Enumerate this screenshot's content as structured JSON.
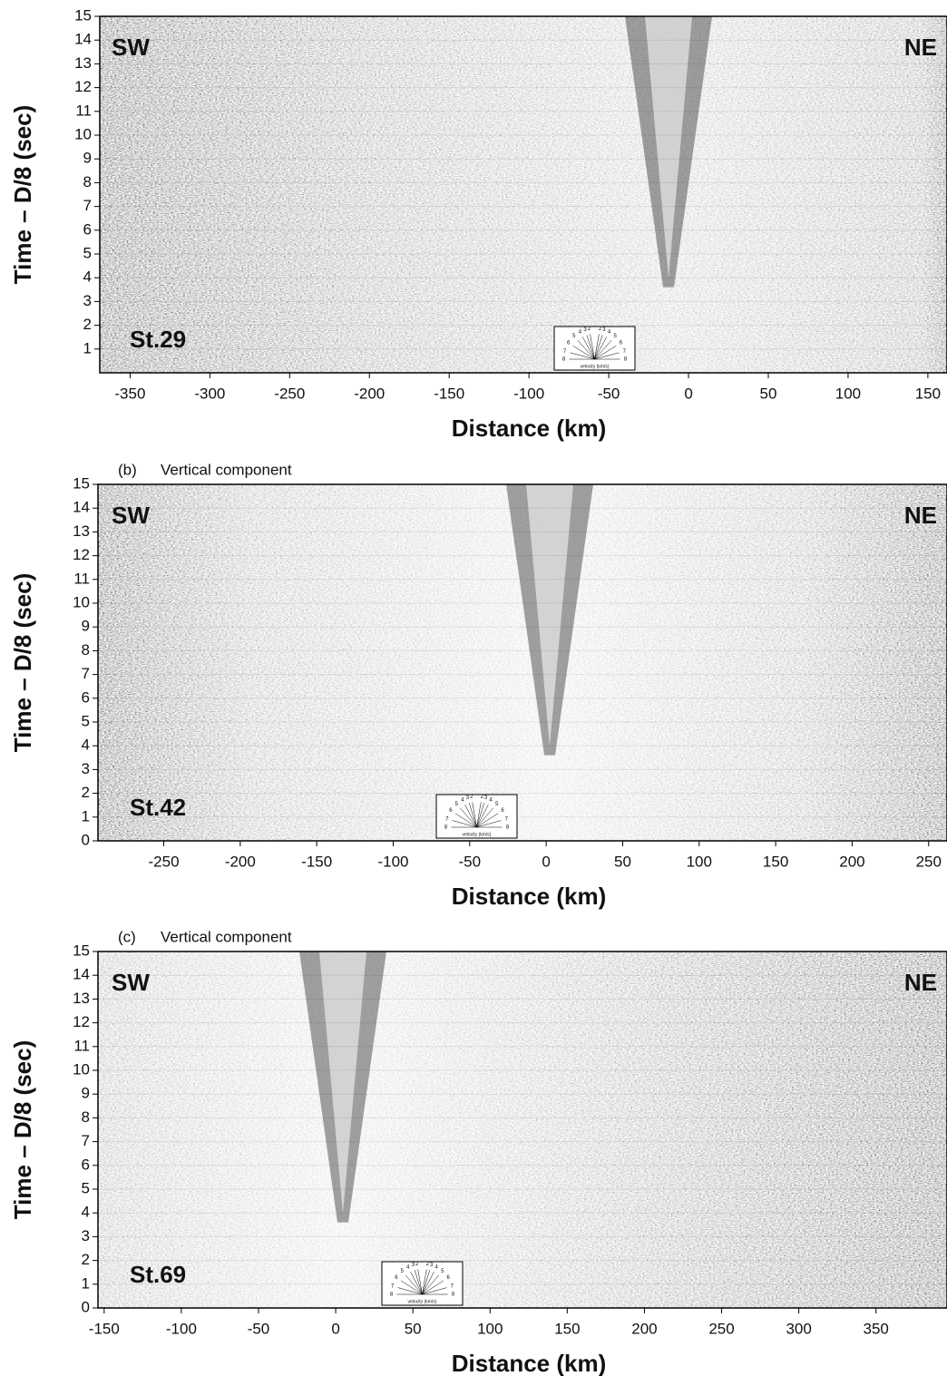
{
  "chart_data": [
    {
      "type": "seismic",
      "xlabel": "Distance (km)",
      "ylabel": "Time – D/8 (sec)",
      "left_label": "SW",
      "right_label": "NE",
      "station": "St.29",
      "xlim": [
        -369,
        162
      ],
      "ylim": [
        0,
        15
      ],
      "xticks": [
        -350,
        -300,
        -250,
        -200,
        -150,
        -100,
        -50,
        0,
        50,
        100,
        150
      ],
      "yticks": [
        1,
        2,
        3,
        4,
        5,
        6,
        7,
        8,
        9,
        10,
        11,
        12,
        13,
        14,
        15
      ],
      "inset": {
        "label": "velocity (km/s)",
        "velocities_left": [
          8,
          7,
          6,
          5,
          4,
          3,
          2
        ],
        "velocities_right": [
          2,
          3,
          4,
          5,
          6,
          7,
          8
        ]
      }
    },
    {
      "type": "seismic",
      "panel_label": "(b)",
      "subtitle": "Vertical component",
      "xlabel": "Distance (km)",
      "ylabel": "Time – D/8 (sec)",
      "left_label": "SW",
      "right_label": "NE",
      "station": "St.42",
      "xlim": [
        -293,
        262
      ],
      "ylim": [
        0,
        15
      ],
      "xticks": [
        -250,
        -200,
        -150,
        -100,
        -50,
        0,
        50,
        100,
        150,
        200,
        250
      ],
      "yticks": [
        0,
        1,
        2,
        3,
        4,
        5,
        6,
        7,
        8,
        9,
        10,
        11,
        12,
        13,
        14,
        15
      ],
      "inset": {
        "label": "velocity (km/s)",
        "velocities_left": [
          8,
          7,
          6,
          5,
          4,
          3,
          2
        ],
        "velocities_right": [
          2,
          3,
          4,
          5,
          6,
          7,
          8
        ]
      }
    },
    {
      "type": "seismic",
      "panel_label": "(c)",
      "subtitle": "Vertical component",
      "xlabel": "Distance (km)",
      "ylabel": "Time – D/8 (sec)",
      "left_label": "SW",
      "right_label": "NE",
      "station": "St.69",
      "xlim": [
        -154,
        396
      ],
      "ylim": [
        0,
        15
      ],
      "xticks": [
        -150,
        -100,
        -50,
        0,
        50,
        100,
        150,
        200,
        250,
        300,
        350
      ],
      "yticks": [
        0,
        1,
        2,
        3,
        4,
        5,
        6,
        7,
        8,
        9,
        10,
        11,
        12,
        13,
        14,
        15
      ],
      "inset": {
        "label": "velocity (km/s)",
        "velocities_left": [
          8,
          7,
          6,
          5,
          4,
          3,
          2
        ],
        "velocities_right": [
          2,
          3,
          4,
          5,
          6,
          7,
          8
        ]
      }
    }
  ]
}
